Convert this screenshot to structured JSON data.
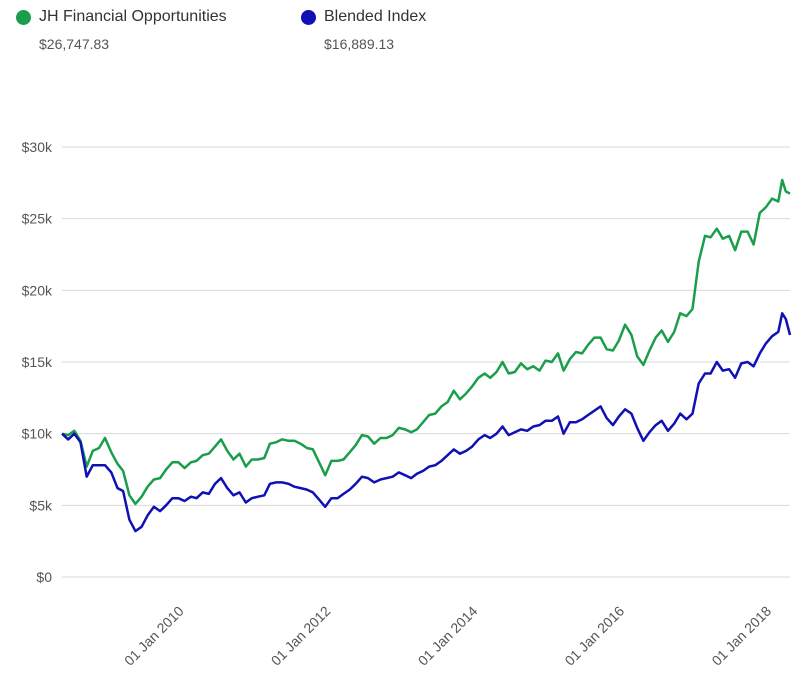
{
  "legend": {
    "items": [
      {
        "name": "JH Financial Opportunities",
        "value": "$26,747.83",
        "color": "#1a9e4b"
      },
      {
        "name": "Blended Index",
        "value": "$16,889.13",
        "color": "#1010b4"
      }
    ]
  },
  "chart_data": {
    "type": "line",
    "title": "",
    "xlabel": "",
    "ylabel": "",
    "ylim": [
      0,
      30000
    ],
    "yticks": [
      0,
      5000,
      10000,
      15000,
      20000,
      25000,
      30000
    ],
    "ytick_labels": [
      "$0",
      "$5k",
      "$10k",
      "$15k",
      "$20k",
      "$25k",
      "$30k"
    ],
    "xlim": [
      "2008-05-01",
      "2018-03-31"
    ],
    "xticks": [
      "2010-01-01",
      "2012-01-01",
      "2014-01-01",
      "2016-01-01",
      "2018-01-01"
    ],
    "xtick_labels": [
      "01 Jan 2010",
      "01 Jan 2012",
      "01 Jan 2014",
      "01 Jan 2016",
      "01 Jan 2018"
    ],
    "grid": true,
    "legend_position": "top-left",
    "series": [
      {
        "name": "JH Financial Opportunities",
        "color": "#1a9e4b",
        "points": [
          [
            "2008-05-01",
            10000
          ],
          [
            "2008-06-01",
            9900
          ],
          [
            "2008-07-01",
            10200
          ],
          [
            "2008-08-01",
            9500
          ],
          [
            "2008-09-01",
            7700
          ],
          [
            "2008-10-01",
            8800
          ],
          [
            "2008-11-01",
            9000
          ],
          [
            "2008-12-01",
            9700
          ],
          [
            "2009-01-01",
            8700
          ],
          [
            "2009-02-01",
            7900
          ],
          [
            "2009-03-01",
            7400
          ],
          [
            "2009-04-01",
            5700
          ],
          [
            "2009-05-01",
            5100
          ],
          [
            "2009-06-01",
            5600
          ],
          [
            "2009-07-01",
            6300
          ],
          [
            "2009-08-01",
            6800
          ],
          [
            "2009-09-01",
            6900
          ],
          [
            "2009-10-01",
            7500
          ],
          [
            "2009-11-01",
            8000
          ],
          [
            "2009-12-01",
            8000
          ],
          [
            "2010-01-01",
            7600
          ],
          [
            "2010-02-01",
            8000
          ],
          [
            "2010-03-01",
            8100
          ],
          [
            "2010-04-01",
            8500
          ],
          [
            "2010-05-01",
            8600
          ],
          [
            "2010-06-01",
            9100
          ],
          [
            "2010-07-01",
            9600
          ],
          [
            "2010-08-01",
            8800
          ],
          [
            "2010-09-01",
            8200
          ],
          [
            "2010-10-01",
            8600
          ],
          [
            "2010-11-01",
            7700
          ],
          [
            "2010-12-01",
            8200
          ],
          [
            "2011-01-01",
            8200
          ],
          [
            "2011-02-01",
            8300
          ],
          [
            "2011-03-01",
            9300
          ],
          [
            "2011-04-01",
            9400
          ],
          [
            "2011-05-01",
            9600
          ],
          [
            "2011-06-01",
            9500
          ],
          [
            "2011-07-01",
            9500
          ],
          [
            "2011-08-01",
            9300
          ],
          [
            "2011-09-01",
            9000
          ],
          [
            "2011-10-01",
            8900
          ],
          [
            "2011-11-01",
            8000
          ],
          [
            "2011-12-01",
            7100
          ],
          [
            "2012-01-01",
            8100
          ],
          [
            "2012-02-01",
            8100
          ],
          [
            "2012-03-01",
            8200
          ],
          [
            "2012-04-01",
            8700
          ],
          [
            "2012-05-01",
            9200
          ],
          [
            "2012-06-01",
            9900
          ],
          [
            "2012-07-01",
            9800
          ],
          [
            "2012-08-01",
            9300
          ],
          [
            "2012-09-01",
            9700
          ],
          [
            "2012-10-01",
            9700
          ],
          [
            "2012-11-01",
            9900
          ],
          [
            "2012-12-01",
            10400
          ],
          [
            "2013-01-01",
            10300
          ],
          [
            "2013-02-01",
            10100
          ],
          [
            "2013-03-01",
            10300
          ],
          [
            "2013-04-01",
            10800
          ],
          [
            "2013-05-01",
            11300
          ],
          [
            "2013-06-01",
            11400
          ],
          [
            "2013-07-01",
            11900
          ],
          [
            "2013-08-01",
            12200
          ],
          [
            "2013-09-01",
            13000
          ],
          [
            "2013-10-01",
            12400
          ],
          [
            "2013-11-01",
            12800
          ],
          [
            "2013-12-01",
            13300
          ],
          [
            "2014-01-01",
            13900
          ],
          [
            "2014-02-01",
            14200
          ],
          [
            "2014-03-01",
            13900
          ],
          [
            "2014-04-01",
            14300
          ],
          [
            "2014-05-01",
            15000
          ],
          [
            "2014-06-01",
            14200
          ],
          [
            "2014-07-01",
            14300
          ],
          [
            "2014-08-01",
            14900
          ],
          [
            "2014-09-01",
            14500
          ],
          [
            "2014-10-01",
            14700
          ],
          [
            "2014-11-01",
            14400
          ],
          [
            "2014-12-01",
            15100
          ],
          [
            "2015-01-01",
            15000
          ],
          [
            "2015-02-01",
            15600
          ],
          [
            "2015-03-01",
            14400
          ],
          [
            "2015-04-01",
            15200
          ],
          [
            "2015-05-01",
            15700
          ],
          [
            "2015-06-01",
            15600
          ],
          [
            "2015-07-01",
            16200
          ],
          [
            "2015-08-01",
            16700
          ],
          [
            "2015-09-01",
            16700
          ],
          [
            "2015-10-01",
            15900
          ],
          [
            "2015-11-01",
            15800
          ],
          [
            "2015-12-01",
            16500
          ],
          [
            "2016-01-01",
            17600
          ],
          [
            "2016-02-01",
            16900
          ],
          [
            "2016-03-01",
            15400
          ],
          [
            "2016-04-01",
            14800
          ],
          [
            "2016-05-01",
            15800
          ],
          [
            "2016-06-01",
            16700
          ],
          [
            "2016-07-01",
            17200
          ],
          [
            "2016-08-01",
            16400
          ],
          [
            "2016-09-01",
            17100
          ],
          [
            "2016-10-01",
            18400
          ],
          [
            "2016-11-01",
            18200
          ],
          [
            "2016-12-01",
            18700
          ],
          [
            "2017-01-01",
            22000
          ],
          [
            "2017-02-01",
            23800
          ],
          [
            "2017-03-01",
            23700
          ],
          [
            "2017-04-01",
            24300
          ],
          [
            "2017-05-01",
            23600
          ],
          [
            "2017-06-01",
            23800
          ],
          [
            "2017-07-01",
            22800
          ],
          [
            "2017-08-01",
            24100
          ],
          [
            "2017-09-01",
            24100
          ],
          [
            "2017-10-01",
            23200
          ],
          [
            "2017-11-01",
            25400
          ],
          [
            "2017-12-01",
            25800
          ],
          [
            "2018-01-01",
            26400
          ],
          [
            "2018-02-01",
            26200
          ],
          [
            "2018-02-20",
            27700
          ],
          [
            "2018-03-10",
            26900
          ],
          [
            "2018-03-31",
            26748
          ]
        ]
      },
      {
        "name": "Blended Index",
        "color": "#1010b4",
        "points": [
          [
            "2008-05-01",
            10000
          ],
          [
            "2008-06-01",
            9600
          ],
          [
            "2008-07-01",
            10000
          ],
          [
            "2008-08-01",
            9400
          ],
          [
            "2008-09-01",
            7000
          ],
          [
            "2008-10-01",
            7800
          ],
          [
            "2008-11-01",
            7800
          ],
          [
            "2008-12-01",
            7800
          ],
          [
            "2009-01-01",
            7300
          ],
          [
            "2009-02-01",
            6200
          ],
          [
            "2009-03-01",
            6000
          ],
          [
            "2009-04-01",
            4000
          ],
          [
            "2009-05-01",
            3200
          ],
          [
            "2009-06-01",
            3500
          ],
          [
            "2009-07-01",
            4300
          ],
          [
            "2009-08-01",
            4900
          ],
          [
            "2009-09-01",
            4600
          ],
          [
            "2009-10-01",
            5000
          ],
          [
            "2009-11-01",
            5500
          ],
          [
            "2009-12-01",
            5500
          ],
          [
            "2010-01-01",
            5300
          ],
          [
            "2010-02-01",
            5600
          ],
          [
            "2010-03-01",
            5500
          ],
          [
            "2010-04-01",
            5900
          ],
          [
            "2010-05-01",
            5800
          ],
          [
            "2010-06-01",
            6500
          ],
          [
            "2010-07-01",
            6900
          ],
          [
            "2010-08-01",
            6200
          ],
          [
            "2010-09-01",
            5700
          ],
          [
            "2010-10-01",
            5900
          ],
          [
            "2010-11-01",
            5200
          ],
          [
            "2010-12-01",
            5500
          ],
          [
            "2011-01-01",
            5600
          ],
          [
            "2011-02-01",
            5700
          ],
          [
            "2011-03-01",
            6500
          ],
          [
            "2011-04-01",
            6600
          ],
          [
            "2011-05-01",
            6600
          ],
          [
            "2011-06-01",
            6500
          ],
          [
            "2011-07-01",
            6300
          ],
          [
            "2011-08-01",
            6200
          ],
          [
            "2011-09-01",
            6100
          ],
          [
            "2011-10-01",
            5900
          ],
          [
            "2011-11-01",
            5400
          ],
          [
            "2011-12-01",
            4900
          ],
          [
            "2012-01-01",
            5500
          ],
          [
            "2012-02-01",
            5500
          ],
          [
            "2012-03-01",
            5800
          ],
          [
            "2012-04-01",
            6100
          ],
          [
            "2012-05-01",
            6500
          ],
          [
            "2012-06-01",
            7000
          ],
          [
            "2012-07-01",
            6900
          ],
          [
            "2012-08-01",
            6600
          ],
          [
            "2012-09-01",
            6800
          ],
          [
            "2012-10-01",
            6900
          ],
          [
            "2012-11-01",
            7000
          ],
          [
            "2012-12-01",
            7300
          ],
          [
            "2013-01-01",
            7100
          ],
          [
            "2013-02-01",
            6900
          ],
          [
            "2013-03-01",
            7200
          ],
          [
            "2013-04-01",
            7400
          ],
          [
            "2013-05-01",
            7700
          ],
          [
            "2013-06-01",
            7800
          ],
          [
            "2013-07-01",
            8100
          ],
          [
            "2013-08-01",
            8500
          ],
          [
            "2013-09-01",
            8900
          ],
          [
            "2013-10-01",
            8600
          ],
          [
            "2013-11-01",
            8800
          ],
          [
            "2013-12-01",
            9100
          ],
          [
            "2014-01-01",
            9600
          ],
          [
            "2014-02-01",
            9900
          ],
          [
            "2014-03-01",
            9700
          ],
          [
            "2014-04-01",
            10000
          ],
          [
            "2014-05-01",
            10500
          ],
          [
            "2014-06-01",
            9900
          ],
          [
            "2014-07-01",
            10100
          ],
          [
            "2014-08-01",
            10300
          ],
          [
            "2014-09-01",
            10200
          ],
          [
            "2014-10-01",
            10500
          ],
          [
            "2014-11-01",
            10600
          ],
          [
            "2014-12-01",
            10900
          ],
          [
            "2015-01-01",
            10900
          ],
          [
            "2015-02-01",
            11200
          ],
          [
            "2015-03-01",
            10000
          ],
          [
            "2015-04-01",
            10800
          ],
          [
            "2015-05-01",
            10800
          ],
          [
            "2015-06-01",
            11000
          ],
          [
            "2015-07-01",
            11300
          ],
          [
            "2015-08-01",
            11600
          ],
          [
            "2015-09-01",
            11900
          ],
          [
            "2015-10-01",
            11100
          ],
          [
            "2015-11-01",
            10600
          ],
          [
            "2015-12-01",
            11200
          ],
          [
            "2016-01-01",
            11700
          ],
          [
            "2016-02-01",
            11400
          ],
          [
            "2016-03-01",
            10400
          ],
          [
            "2016-04-01",
            9500
          ],
          [
            "2016-05-01",
            10100
          ],
          [
            "2016-06-01",
            10600
          ],
          [
            "2016-07-01",
            10900
          ],
          [
            "2016-08-01",
            10200
          ],
          [
            "2016-09-01",
            10700
          ],
          [
            "2016-10-01",
            11400
          ],
          [
            "2016-11-01",
            11000
          ],
          [
            "2016-12-01",
            11400
          ],
          [
            "2017-01-01",
            13500
          ],
          [
            "2017-02-01",
            14200
          ],
          [
            "2017-03-01",
            14200
          ],
          [
            "2017-04-01",
            15000
          ],
          [
            "2017-05-01",
            14400
          ],
          [
            "2017-06-01",
            14500
          ],
          [
            "2017-07-01",
            13900
          ],
          [
            "2017-08-01",
            14900
          ],
          [
            "2017-09-01",
            15000
          ],
          [
            "2017-10-01",
            14700
          ],
          [
            "2017-11-01",
            15600
          ],
          [
            "2017-12-01",
            16300
          ],
          [
            "2018-01-01",
            16800
          ],
          [
            "2018-02-01",
            17100
          ],
          [
            "2018-02-20",
            18400
          ],
          [
            "2018-03-10",
            18000
          ],
          [
            "2018-03-31",
            16889
          ]
        ]
      }
    ]
  }
}
